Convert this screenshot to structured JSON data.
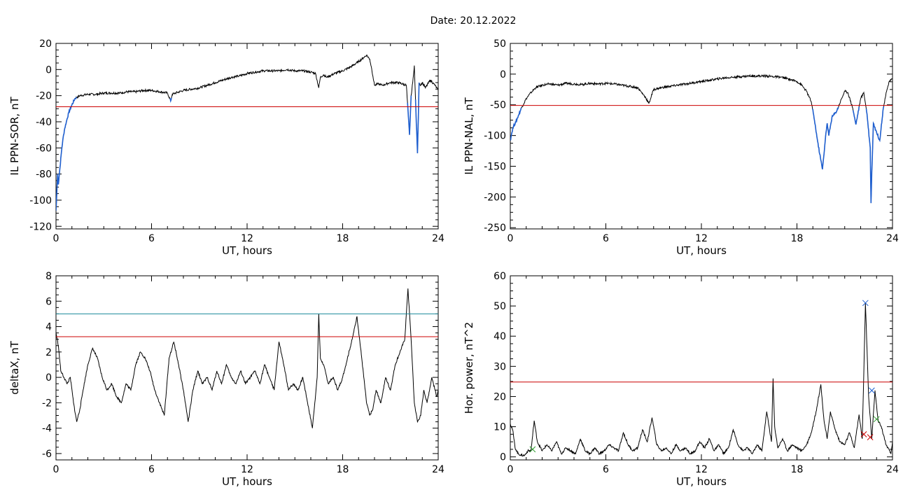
{
  "title": "Date:  20.12.2022",
  "chart_data": [
    {
      "type": "line",
      "xlabel": "UT, hours",
      "ylabel": "IL PPN-SOR, nT",
      "xlim": [
        0,
        24
      ],
      "ylim": [
        -122,
        20
      ],
      "xticks": [
        0,
        6,
        12,
        18,
        24
      ],
      "yticks": [
        20,
        0,
        -20,
        -40,
        -60,
        -80,
        -100,
        -120
      ],
      "threshold_lines": [
        {
          "y": -28.5,
          "color": "#cc0000"
        }
      ],
      "highlight_color": "#1f5fcf",
      "highlight_below": -22,
      "series": [
        {
          "x": [
            0,
            0.05,
            0.1,
            0.15,
            0.25,
            0.35,
            0.45,
            0.55,
            0.65,
            0.8,
            1,
            1.2,
            1.5,
            2,
            2.5,
            3,
            3.5,
            4,
            4.5,
            5,
            5.5,
            6,
            6.5,
            7,
            7.2,
            7.3,
            7.5,
            8,
            8.5,
            9,
            9.5,
            10,
            10.5,
            11,
            11.5,
            12,
            12.5,
            13,
            13.5,
            14,
            14.5,
            15,
            15.5,
            16,
            16.3,
            16.5,
            16.6,
            16.8,
            17,
            17.5,
            18,
            18.5,
            19,
            19.3,
            19.5,
            19.7,
            19.8,
            19.9,
            20,
            20.2,
            20.5,
            21,
            21.5,
            22,
            22.2,
            22.3,
            22.4,
            22.5,
            22.6,
            22.7,
            22.8,
            22.9,
            23,
            23.2,
            23.5,
            23.8,
            24
          ],
          "y": [
            -108,
            -95,
            -80,
            -88,
            -75,
            -62,
            -52,
            -45,
            -40,
            -33,
            -27,
            -22,
            -20,
            -19,
            -19,
            -18,
            -18,
            -18,
            -17,
            -17,
            -16,
            -16,
            -17,
            -18,
            -24,
            -19,
            -18,
            -16,
            -15,
            -14,
            -12,
            -10,
            -8,
            -6,
            -5,
            -3,
            -2,
            -1,
            -1,
            -1,
            0,
            -1,
            -1,
            -2,
            -3,
            -14,
            -6,
            -4,
            -6,
            -3,
            -1,
            2,
            6,
            9,
            11,
            8,
            2,
            -5,
            -12,
            -11,
            -12,
            -10,
            -10,
            -12,
            -50,
            -20,
            -10,
            3,
            -32,
            -64,
            -10,
            -12,
            -10,
            -14,
            -8,
            -12,
            -16
          ]
        }
      ]
    },
    {
      "type": "line",
      "xlabel": "UT, hours",
      "ylabel": "IL PPN-NAL, nT",
      "xlim": [
        0,
        24
      ],
      "ylim": [
        -252,
        50
      ],
      "xticks": [
        0,
        6,
        12,
        18,
        24
      ],
      "yticks": [
        50,
        0,
        -50,
        -100,
        -150,
        -200,
        -250
      ],
      "threshold_lines": [
        {
          "y": -51,
          "color": "#cc0000"
        }
      ],
      "highlight_color": "#1f5fcf",
      "highlight_below": -55,
      "series": [
        {
          "x": [
            0,
            0.1,
            0.2,
            0.35,
            0.5,
            0.7,
            1,
            1.3,
            1.6,
            2,
            2.5,
            3,
            3.5,
            4,
            4.5,
            5,
            5.5,
            6,
            6.5,
            7,
            7.5,
            8,
            8.5,
            8.7,
            9,
            9.5,
            10,
            10.5,
            11,
            11.5,
            12,
            12.5,
            13,
            13.5,
            14,
            14.5,
            15,
            15.5,
            16,
            16.5,
            17,
            17.5,
            18,
            18.3,
            18.6,
            18.9,
            19.1,
            19.3,
            19.5,
            19.6,
            19.7,
            19.8,
            19.9,
            20,
            20.2,
            20.5,
            20.8,
            21,
            21.2,
            21.5,
            21.7,
            22,
            22.2,
            22.4,
            22.6,
            22.65,
            22.7,
            22.8,
            23,
            23.2,
            23.4,
            23.6,
            23.8,
            24
          ],
          "y": [
            -108,
            -95,
            -85,
            -78,
            -68,
            -55,
            -40,
            -30,
            -22,
            -18,
            -16,
            -18,
            -15,
            -16,
            -17,
            -15,
            -16,
            -15,
            -16,
            -18,
            -20,
            -22,
            -38,
            -48,
            -25,
            -22,
            -20,
            -18,
            -16,
            -14,
            -12,
            -10,
            -8,
            -6,
            -5,
            -4,
            -3,
            -3,
            -3,
            -4,
            -5,
            -8,
            -12,
            -18,
            -28,
            -45,
            -75,
            -110,
            -140,
            -155,
            -130,
            -100,
            -80,
            -100,
            -70,
            -60,
            -40,
            -28,
            -30,
            -55,
            -82,
            -40,
            -30,
            -65,
            -120,
            -210,
            -160,
            -80,
            -95,
            -108,
            -60,
            -30,
            -12,
            -8
          ]
        }
      ]
    },
    {
      "type": "line",
      "xlabel": "UT, hours",
      "ylabel": "deltaX, nT",
      "xlim": [
        0,
        24
      ],
      "ylim": [
        -6.5,
        8
      ],
      "xticks": [
        0,
        6,
        12,
        18,
        24
      ],
      "yticks": [
        8,
        6,
        4,
        2,
        0,
        -2,
        -4,
        -6
      ],
      "threshold_lines": [
        {
          "y": 5.0,
          "color": "#1a8a9a"
        },
        {
          "y": 3.2,
          "color": "#cc0000"
        }
      ],
      "series": [
        {
          "x": [
            0,
            0.15,
            0.3,
            0.5,
            0.7,
            0.9,
            1.1,
            1.3,
            1.5,
            1.7,
            2,
            2.3,
            2.6,
            2.9,
            3.2,
            3.5,
            3.8,
            4.1,
            4.4,
            4.7,
            5,
            5.3,
            5.6,
            5.9,
            6.2,
            6.5,
            6.8,
            7.1,
            7.4,
            7.7,
            8,
            8.3,
            8.6,
            8.9,
            9.2,
            9.5,
            9.8,
            10.1,
            10.4,
            10.7,
            11,
            11.3,
            11.6,
            11.9,
            12.2,
            12.5,
            12.8,
            13.1,
            13.4,
            13.7,
            14,
            14.3,
            14.6,
            14.9,
            15.2,
            15.5,
            15.8,
            16.1,
            16.4,
            16.5,
            16.6,
            16.8,
            17.1,
            17.4,
            17.7,
            18,
            18.3,
            18.6,
            18.9,
            19.2,
            19.5,
            19.7,
            19.9,
            20.1,
            20.4,
            20.7,
            21,
            21.3,
            21.6,
            21.9,
            22.1,
            22.3,
            22.5,
            22.7,
            22.9,
            23.1,
            23.3,
            23.6,
            23.9,
            24
          ],
          "y": [
            3.5,
            2.5,
            0.5,
            0,
            -0.5,
            0,
            -2,
            -3.5,
            -2.5,
            -1,
            1,
            2.3,
            1.5,
            0,
            -1,
            -0.5,
            -1.5,
            -2,
            -0.5,
            -1,
            1,
            2,
            1.5,
            0.5,
            -1,
            -2,
            -3,
            1.5,
            2.8,
            1,
            -1,
            -3.5,
            -1,
            0.5,
            -0.5,
            0,
            -1,
            0.5,
            -0.5,
            1,
            0,
            -0.5,
            0.5,
            -0.5,
            0,
            0.5,
            -0.5,
            1,
            0,
            -1,
            2.8,
            1,
            -1,
            -0.5,
            -1,
            0,
            -2,
            -4,
            0,
            5,
            1.5,
            1,
            -0.5,
            0,
            -1,
            0,
            1.5,
            3,
            4.8,
            1.5,
            -2,
            -3,
            -2.5,
            -1,
            -2,
            0,
            -1,
            1,
            2,
            3,
            7,
            3,
            -2,
            -3.5,
            -3,
            -1,
            -2,
            0,
            -1.5,
            -1
          ]
        }
      ]
    },
    {
      "type": "line",
      "xlabel": "UT, hours",
      "ylabel": "Hor. power, nT^2",
      "xlim": [
        0,
        24
      ],
      "ylim": [
        -1,
        60
      ],
      "xticks": [
        0,
        6,
        12,
        18,
        24
      ],
      "yticks": [
        60,
        50,
        40,
        30,
        20,
        10,
        0
      ],
      "threshold_lines": [
        {
          "y": 24.8,
          "color": "#cc0000"
        }
      ],
      "series": [
        {
          "x": [
            0,
            0.15,
            0.3,
            0.5,
            0.7,
            0.9,
            1.1,
            1.3,
            1.5,
            1.7,
            2,
            2.3,
            2.6,
            2.9,
            3.2,
            3.5,
            3.8,
            4.1,
            4.4,
            4.7,
            5,
            5.3,
            5.6,
            5.9,
            6.2,
            6.5,
            6.8,
            7.1,
            7.4,
            7.7,
            8,
            8.3,
            8.6,
            8.9,
            9.2,
            9.5,
            9.8,
            10.1,
            10.4,
            10.7,
            11,
            11.3,
            11.6,
            11.9,
            12.2,
            12.5,
            12.8,
            13.1,
            13.4,
            13.7,
            14,
            14.3,
            14.6,
            14.9,
            15.2,
            15.5,
            15.8,
            16.1,
            16.4,
            16.5,
            16.6,
            16.8,
            17.1,
            17.4,
            17.7,
            18,
            18.3,
            18.6,
            18.9,
            19.2,
            19.5,
            19.7,
            19.9,
            20.1,
            20.4,
            20.7,
            21,
            21.3,
            21.6,
            21.9,
            22.1,
            22.3,
            22.5,
            22.7,
            22.9,
            23.1,
            23.3,
            23.6,
            23.9,
            24
          ],
          "y": [
            11,
            9,
            3,
            1,
            0.5,
            0.5,
            2,
            2,
            12,
            5,
            2,
            4,
            2,
            5,
            1,
            3,
            2,
            1,
            6,
            2,
            1,
            3,
            1,
            2,
            4,
            3,
            2,
            8,
            4,
            2,
            3,
            9,
            5,
            13,
            4,
            2,
            3,
            1,
            4,
            2,
            3,
            1,
            2,
            5,
            3,
            6,
            2,
            4,
            1,
            3,
            9,
            4,
            2,
            3,
            1,
            4,
            2,
            15,
            5,
            26,
            10,
            3,
            6,
            2,
            4,
            3,
            2,
            4,
            8,
            15,
            24,
            12,
            6,
            15,
            9,
            5,
            4,
            8,
            3,
            14,
            6,
            51,
            20,
            6,
            22,
            12,
            10,
            4,
            1,
            5
          ]
        }
      ],
      "markers": [
        {
          "x": 1.4,
          "y": 2.5,
          "symbol": "x",
          "color": "#2a9a2a"
        },
        {
          "x": 22.3,
          "y": 51,
          "symbol": "x",
          "color": "#1f5fcf"
        },
        {
          "x": 22.7,
          "y": 22,
          "symbol": "x",
          "color": "#1f5fcf"
        },
        {
          "x": 22.2,
          "y": 7.5,
          "symbol": "x",
          "color": "#cc0000"
        },
        {
          "x": 22.6,
          "y": 6.5,
          "symbol": "x",
          "color": "#cc0000"
        },
        {
          "x": 23.0,
          "y": 12.5,
          "symbol": "x",
          "color": "#2a9a2a"
        }
      ]
    }
  ]
}
